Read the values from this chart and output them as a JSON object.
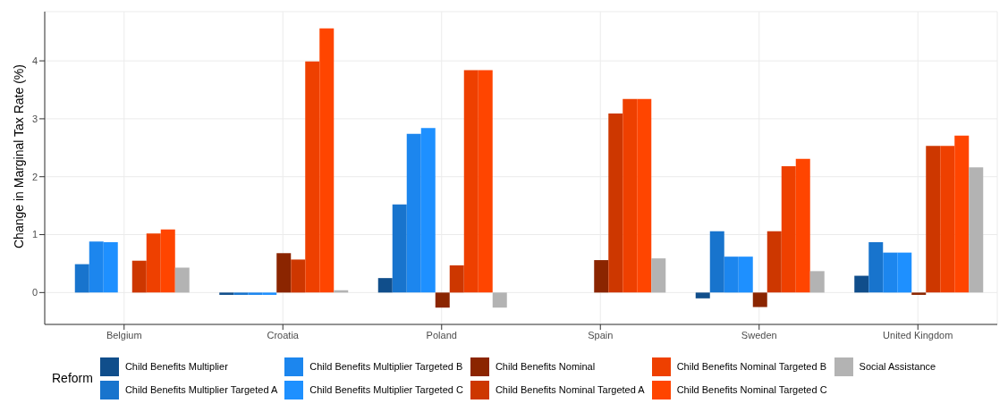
{
  "chart_data": {
    "type": "bar",
    "ylabel": "Change in Marginal Tax Rate (%)",
    "legend_title": "Reform",
    "legend": "bottom",
    "grid": true,
    "categories": [
      "Belgium",
      "Croatia",
      "Poland",
      "Spain",
      "Sweden",
      "United Kingdom"
    ],
    "ylim": [
      -0.55,
      4.85
    ],
    "yticks": [
      0,
      1,
      2,
      3,
      4
    ],
    "series": [
      {
        "name": "Child Benefits Multiplier",
        "color": "#104e8b",
        "values": [
          0,
          -0.04,
          0.25,
          0,
          -0.1,
          0.29
        ]
      },
      {
        "name": "Child Benefits Multiplier Targeted A",
        "color": "#1874cd",
        "values": [
          0.49,
          -0.04,
          1.52,
          0,
          1.06,
          0.87
        ]
      },
      {
        "name": "Child Benefits Multiplier Targeted B",
        "color": "#1c86ee",
        "values": [
          0.88,
          -0.04,
          2.74,
          0,
          0.62,
          0.69
        ]
      },
      {
        "name": "Child Benefits Multiplier Targeted C",
        "color": "#1e90ff",
        "values": [
          0.87,
          -0.04,
          2.84,
          0,
          0.62,
          0.69
        ]
      },
      {
        "name": "Child Benefits Nominal",
        "color": "#8b2500",
        "values": [
          0,
          0.68,
          -0.26,
          0.56,
          -0.25,
          -0.04
        ]
      },
      {
        "name": "Child Benefits Nominal Targeted A",
        "color": "#cd3700",
        "values": [
          0.55,
          0.57,
          0.47,
          3.09,
          1.06,
          2.53
        ]
      },
      {
        "name": "Child Benefits Nominal Targeted B",
        "color": "#ee4000",
        "values": [
          1.02,
          3.99,
          3.84,
          3.34,
          2.18,
          2.53
        ]
      },
      {
        "name": "Child Benefits Nominal Targeted C",
        "color": "#ff4500",
        "values": [
          1.09,
          4.56,
          3.84,
          3.34,
          2.31,
          2.71
        ]
      },
      {
        "name": "Social Assistance",
        "color": "#b3b3b3",
        "values": [
          0.43,
          0.04,
          -0.26,
          0.59,
          0.37,
          2.16
        ]
      }
    ]
  }
}
